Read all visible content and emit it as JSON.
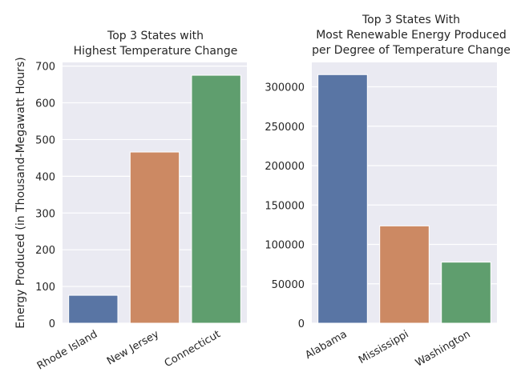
{
  "chart_data": [
    {
      "type": "bar",
      "title_lines": [
        "Top 3 States with",
        "Highest Temperature Change"
      ],
      "ylabel": "Energy Produced (in Thousand-Megawatt Hours)",
      "xlabel": "",
      "categories": [
        "Rhode Island",
        "New Jersey",
        "Connecticut"
      ],
      "values": [
        76,
        466,
        675
      ],
      "colors": [
        "#5975a4",
        "#cc8963",
        "#5f9e6e"
      ],
      "ylim": [
        0,
        710
      ],
      "yticks": [
        0,
        100,
        200,
        300,
        400,
        500,
        600,
        700
      ],
      "ytick_labels": [
        "0",
        "100",
        "200",
        "300",
        "400",
        "500",
        "600",
        "700"
      ],
      "grid": true,
      "legend": "none"
    },
    {
      "type": "bar",
      "title_lines": [
        "Top 3 States With",
        "Most Renewable Energy Produced",
        "per Degree of Temperature Change"
      ],
      "ylabel": "",
      "xlabel": "",
      "categories": [
        "Alabama",
        "Mississippi",
        "Washington"
      ],
      "values": [
        315500,
        123500,
        77500
      ],
      "colors": [
        "#5975a4",
        "#cc8963",
        "#5f9e6e"
      ],
      "ylim": [
        0,
        331000
      ],
      "yticks": [
        0,
        50000,
        100000,
        150000,
        200000,
        250000,
        300000
      ],
      "ytick_labels": [
        "0",
        "50000",
        "100000",
        "150000",
        "200000",
        "250000",
        "300000"
      ],
      "grid": true,
      "legend": "none"
    }
  ]
}
